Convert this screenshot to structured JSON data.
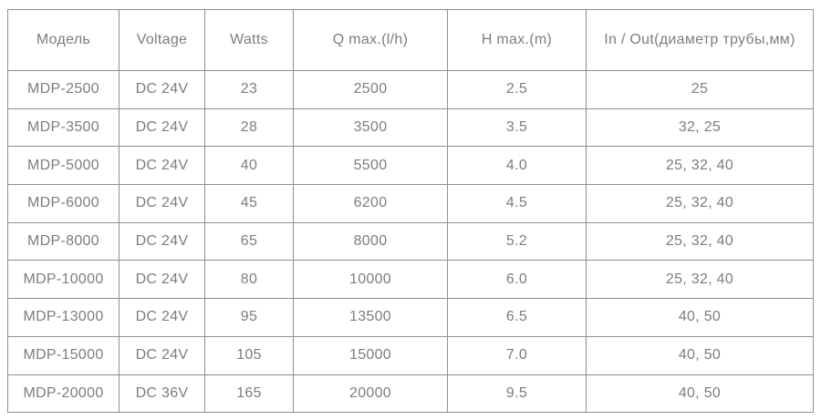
{
  "table": {
    "columns": {
      "model": "Модель",
      "voltage": "Voltage",
      "watts": "Watts",
      "qmax": "Q max.(l/h)",
      "hmax": "H max.(m)",
      "inout": "In / Out(диаметр трубы,мм)"
    },
    "rows": [
      [
        "MDP-2500",
        "DC 24V",
        "23",
        "2500",
        "2.5",
        "25"
      ],
      [
        "MDP-3500",
        "DC 24V",
        "28",
        "3500",
        "3.5",
        "32, 25"
      ],
      [
        "MDP-5000",
        "DC 24V",
        "40",
        "5500",
        "4.0",
        "25, 32, 40"
      ],
      [
        "MDP-6000",
        "DC 24V",
        "45",
        "6200",
        "4.5",
        "25, 32, 40"
      ],
      [
        "MDP-8000",
        "DC 24V",
        "65",
        "8000",
        "5.2",
        "25, 32, 40"
      ],
      [
        "MDP-10000",
        "DC 24V",
        "80",
        "10000",
        "6.0",
        "25, 32, 40"
      ],
      [
        "MDP-13000",
        "DC 24V",
        "95",
        "13500",
        "6.5",
        "40, 50"
      ],
      [
        "MDP-15000",
        "DC 24V",
        "105",
        "15000",
        "7.0",
        "40, 50"
      ],
      [
        "MDP-20000",
        "DC 36V",
        "165",
        "20000",
        "9.5",
        "40, 50"
      ]
    ],
    "colors": {
      "text": "#7d7d7d",
      "border": "#8f8f8f",
      "background": "#ffffff"
    }
  }
}
